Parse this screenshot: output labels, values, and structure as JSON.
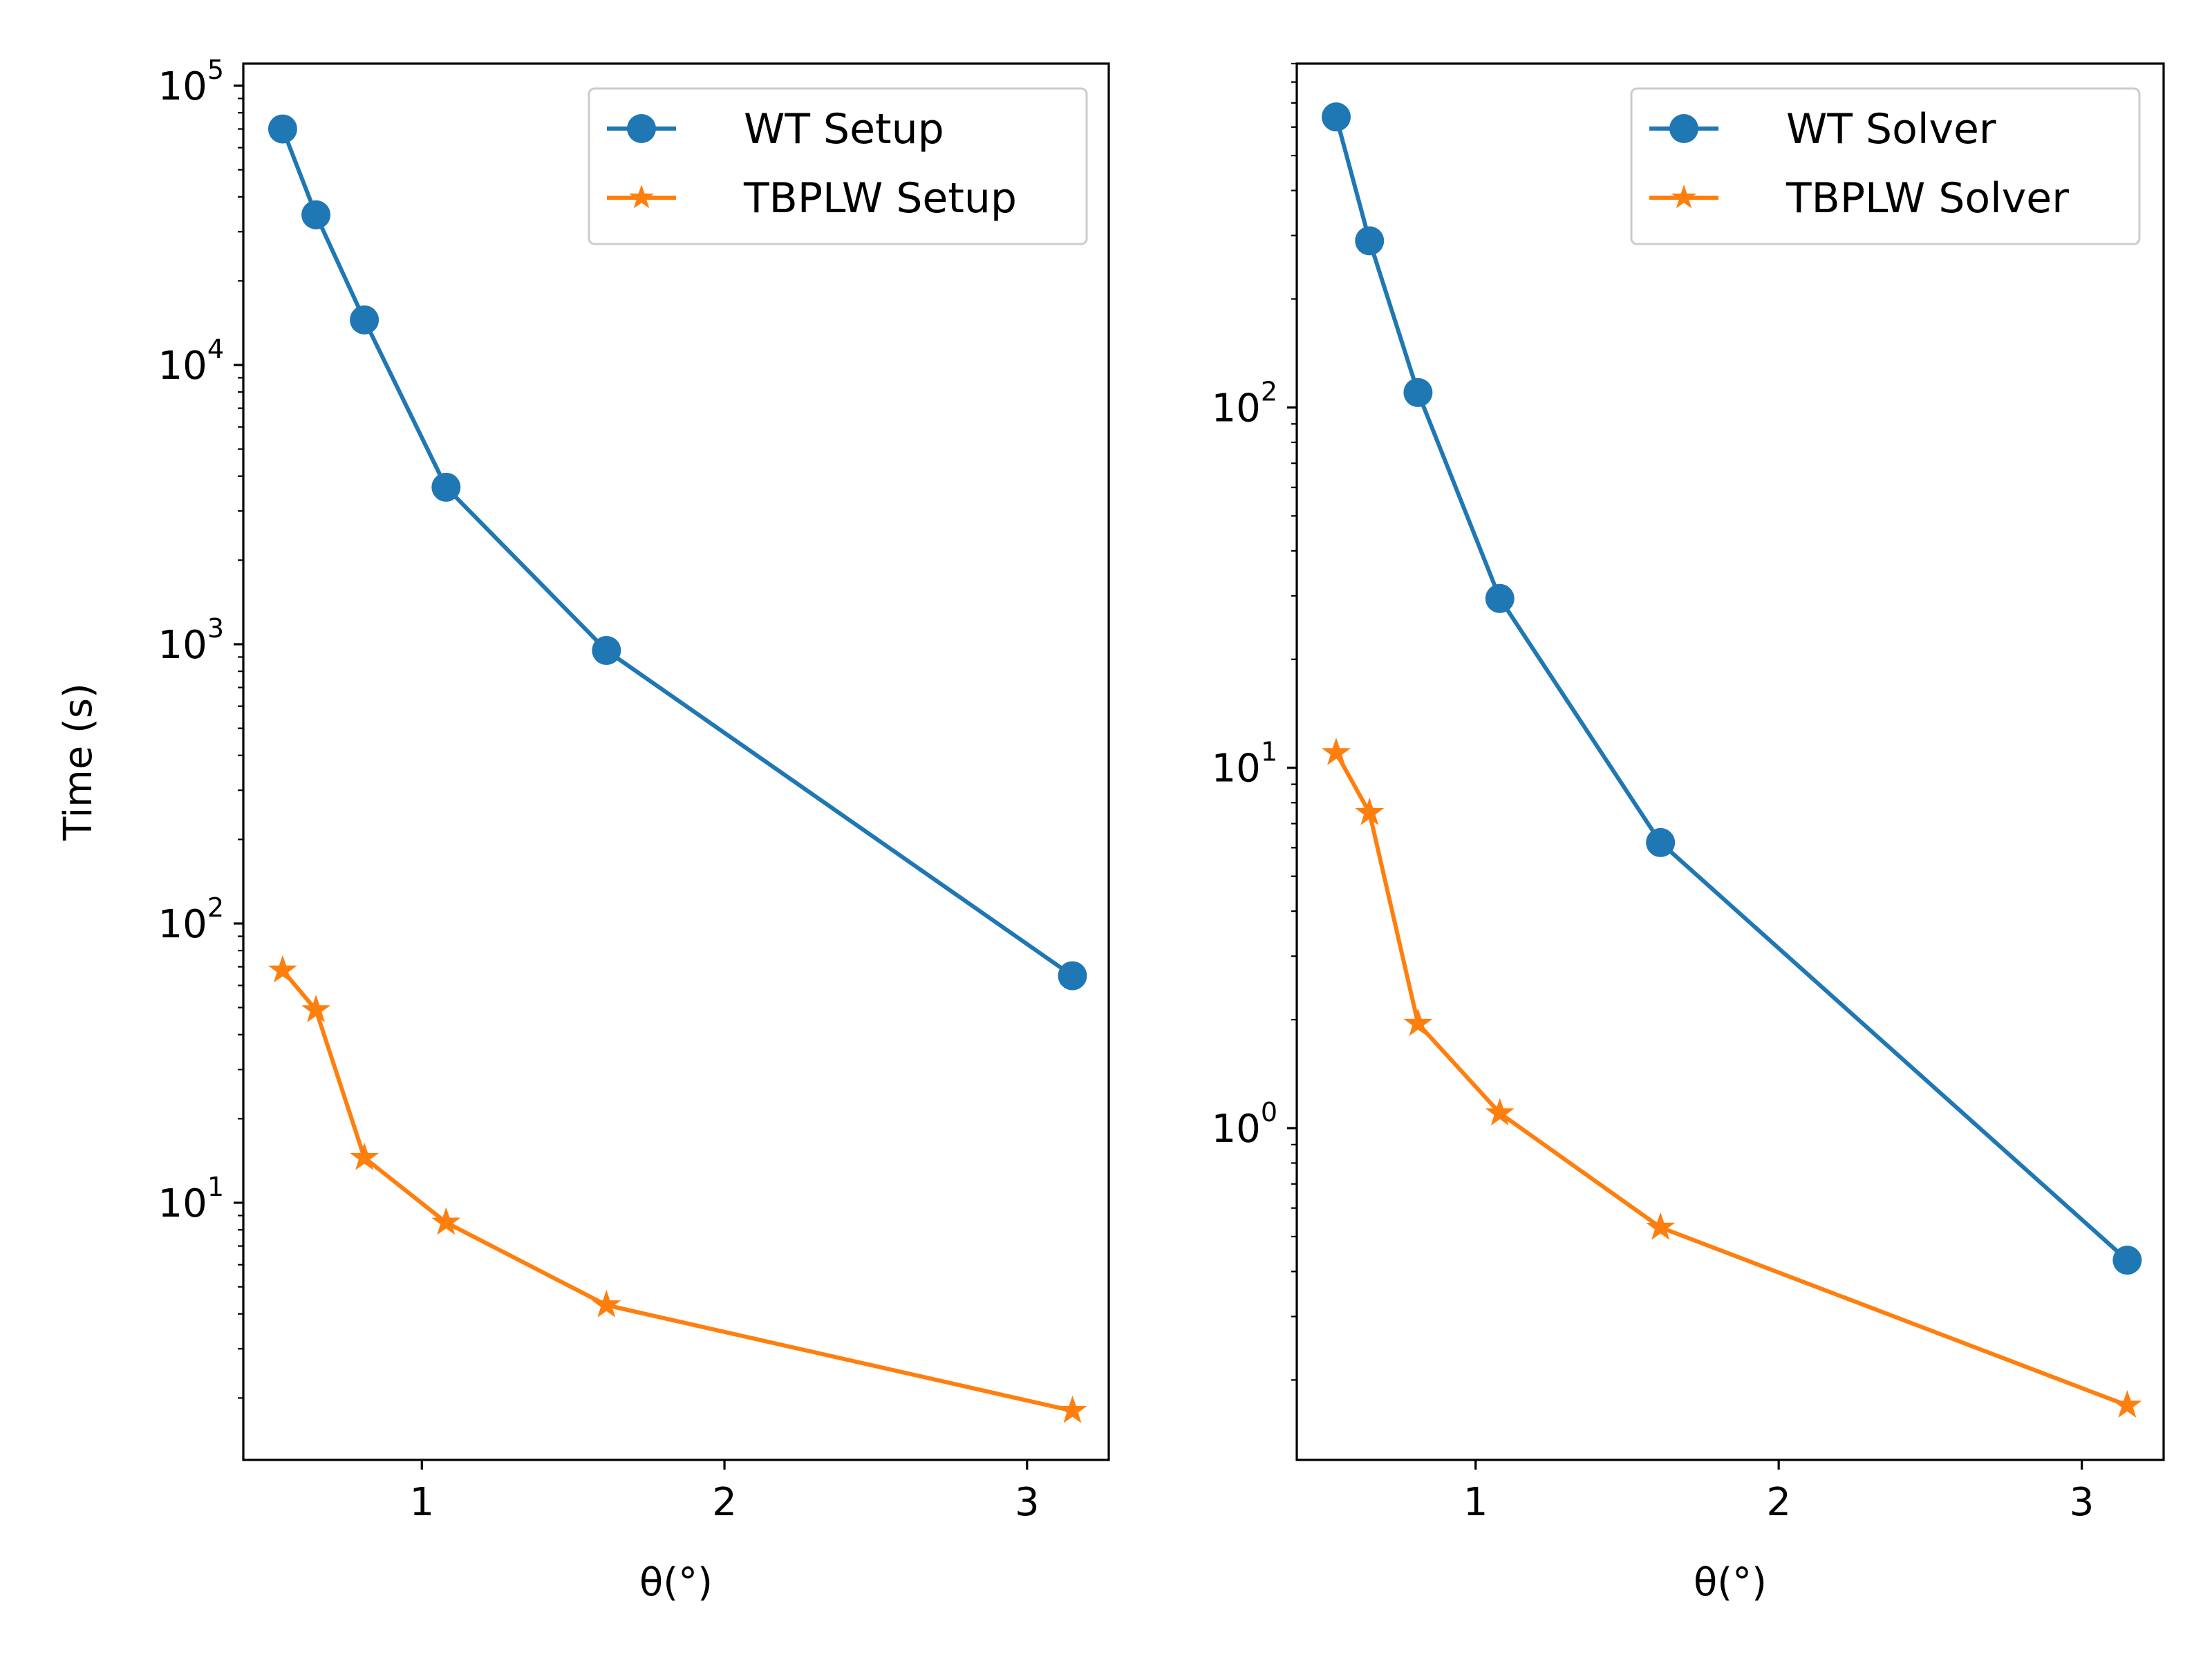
{
  "chart_data": [
    {
      "type": "line",
      "title": "",
      "xlabel": "θ(°)",
      "ylabel": "Time (s)",
      "yscale": "log",
      "xlim": [
        0.41,
        3.27
      ],
      "ylim": [
        1.2,
        120000
      ],
      "x_ticks": [
        1,
        2,
        3
      ],
      "y_ticks": [
        {
          "base": "10",
          "exp": "1",
          "value": 10
        },
        {
          "base": "10",
          "exp": "2",
          "value": 100
        },
        {
          "base": "10",
          "exp": "3",
          "value": 1000
        },
        {
          "base": "10",
          "exp": "4",
          "value": 10000
        },
        {
          "base": "10",
          "exp": "5",
          "value": 100000
        }
      ],
      "grid": false,
      "legend_position": "top-right",
      "series": [
        {
          "name": "WT Setup",
          "color": "#1f77b4",
          "marker": "circle",
          "x": [
            0.54,
            0.65,
            0.81,
            1.08,
            1.61,
            3.15
          ],
          "y": [
            70000,
            34500,
            14500,
            3650,
            950,
            65
          ]
        },
        {
          "name": "TBPLW Setup",
          "color": "#ff7f0e",
          "marker": "star",
          "x": [
            0.54,
            0.65,
            0.81,
            1.08,
            1.61,
            3.15
          ],
          "y": [
            68,
            49,
            14.5,
            8.5,
            4.3,
            1.8
          ]
        }
      ]
    },
    {
      "type": "line",
      "title": "",
      "xlabel": "θ(°)",
      "ylabel": "",
      "yscale": "log",
      "xlim": [
        0.41,
        3.27
      ],
      "ylim": [
        0.12,
        900
      ],
      "x_ticks": [
        1,
        2,
        3
      ],
      "y_ticks": [
        {
          "base": "10",
          "exp": "0",
          "value": 1
        },
        {
          "base": "10",
          "exp": "1",
          "value": 10
        },
        {
          "base": "10",
          "exp": "2",
          "value": 100
        }
      ],
      "grid": false,
      "legend_position": "top-right",
      "series": [
        {
          "name": "WT Solver",
          "color": "#1f77b4",
          "marker": "circle",
          "x": [
            0.54,
            0.65,
            0.81,
            1.08,
            1.61,
            3.15
          ],
          "y": [
            640,
            290,
            110,
            29.5,
            6.2,
            0.43
          ]
        },
        {
          "name": "TBPLW Solver",
          "color": "#ff7f0e",
          "marker": "star",
          "x": [
            0.54,
            0.65,
            0.81,
            1.08,
            1.61,
            3.15
          ],
          "y": [
            11,
            7.5,
            1.95,
            1.1,
            0.53,
            0.17
          ]
        }
      ]
    }
  ]
}
